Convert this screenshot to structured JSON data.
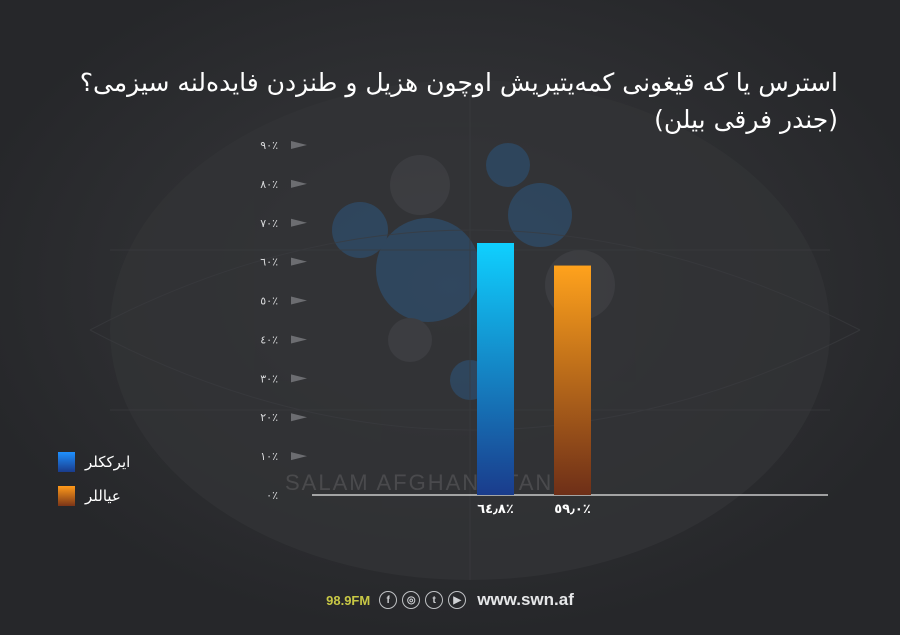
{
  "title": "استرس یا که قیغونی کمه‌یتیریش اوچون هزیل و طنزدن فایده‌لنه سیزمی؟ (جندر فرقی بیلن)",
  "watermark": "SALAM AFGHANISTAN",
  "footer": {
    "radio": "98.9FM",
    "social_icons": [
      "facebook-icon",
      "instagram-icon",
      "twitter-icon",
      "play-icon"
    ],
    "website": "www.swn.af"
  },
  "legend": [
    {
      "label": "ایرککلر",
      "color_top": "#1e90ff",
      "color_bottom": "#1a3c8c"
    },
    {
      "label": "عیاللر",
      "color_top": "#ff9a1a",
      "color_bottom": "#7a3518"
    }
  ],
  "chart_data": {
    "type": "bar",
    "categories": [
      "ایرککلر",
      "عیاللر"
    ],
    "values": [
      64.8,
      59.0
    ],
    "value_labels": [
      "٦٤٫٨٪",
      "٥٩٫٠٪"
    ],
    "ylim": [
      0,
      90
    ],
    "yticks": [
      0,
      10,
      20,
      30,
      40,
      50,
      60,
      70,
      80,
      90
    ],
    "ytick_labels": [
      "٠٪",
      "١٠٪",
      "٢٠٪",
      "٣٠٪",
      "٤٠٪",
      "٥٠٪",
      "٦٠٪",
      "٧٠٪",
      "٨٠٪",
      "٩٠٪"
    ],
    "colors": [
      {
        "top": "#0fd0ff",
        "bottom": "#1a3c8c"
      },
      {
        "top": "#ffa21c",
        "bottom": "#6e2f18"
      }
    ],
    "grid": false,
    "legend_position": "bottom-left"
  }
}
